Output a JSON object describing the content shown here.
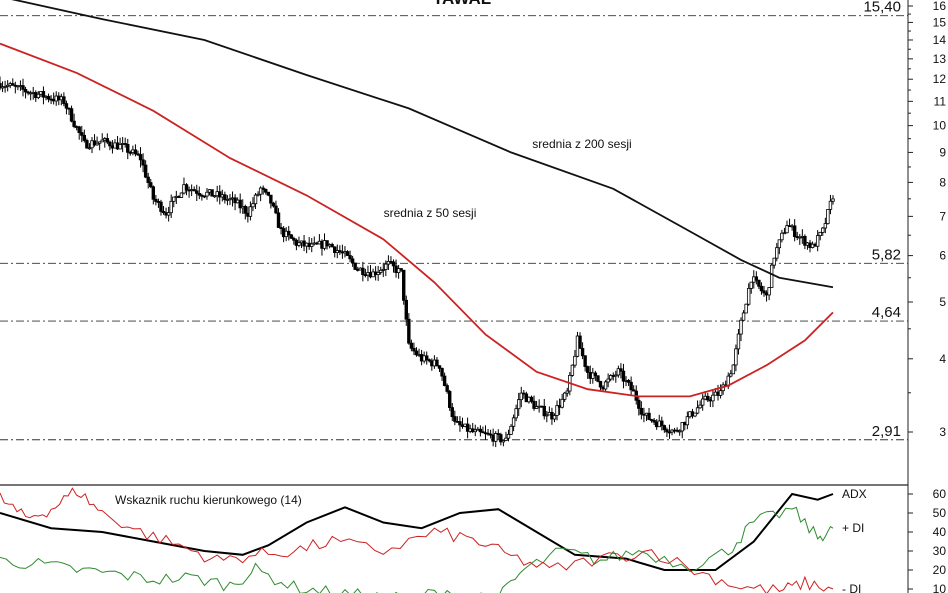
{
  "chart_data": [
    {
      "type": "candlestick",
      "title": "TAWAL",
      "y_scale": "log",
      "ylim": [
        2.6,
        16.4
      ],
      "y_ticks": [
        3,
        4,
        5,
        6,
        7,
        8,
        9,
        10,
        11,
        12,
        13,
        14,
        15,
        16
      ],
      "y_tick_labels": [
        "3",
        "4",
        "5",
        "6",
        "7",
        "8",
        "9",
        "10",
        "11",
        "12",
        "13",
        "14",
        "15",
        "16"
      ],
      "reference_levels": [
        {
          "value": 15.4,
          "label": "15,40"
        },
        {
          "value": 5.82,
          "label": "5,82"
        },
        {
          "value": 4.64,
          "label": "4,64"
        },
        {
          "value": 2.91,
          "label": "2,91"
        }
      ],
      "annotations": [
        "srednia z 200 sesji",
        "srednia z 50 sesji"
      ],
      "close_path": [
        [
          0,
          11.8
        ],
        [
          12,
          11.4
        ],
        [
          25,
          11.0
        ],
        [
          33,
          9.3
        ],
        [
          40,
          9.4
        ],
        [
          48,
          9.2
        ],
        [
          55,
          8.8
        ],
        [
          60,
          7.5
        ],
        [
          65,
          7.1
        ],
        [
          72,
          7.9
        ],
        [
          78,
          7.7
        ],
        [
          85,
          7.6
        ],
        [
          92,
          7.4
        ],
        [
          97,
          7.1
        ],
        [
          102,
          7.8
        ],
        [
          106,
          7.4
        ],
        [
          110,
          6.6
        ],
        [
          116,
          6.3
        ],
        [
          122,
          6.2
        ],
        [
          128,
          6.3
        ],
        [
          135,
          6.0
        ],
        [
          140,
          5.7
        ],
        [
          146,
          5.6
        ],
        [
          152,
          5.8
        ],
        [
          157,
          5.6
        ],
        [
          160,
          4.2
        ],
        [
          165,
          4.0
        ],
        [
          172,
          3.9
        ],
        [
          178,
          3.1
        ],
        [
          185,
          3.0
        ],
        [
          192,
          2.95
        ],
        [
          198,
          2.9
        ],
        [
          204,
          3.5
        ],
        [
          210,
          3.3
        ],
        [
          216,
          3.2
        ],
        [
          222,
          3.5
        ],
        [
          226,
          4.3
        ],
        [
          230,
          3.8
        ],
        [
          236,
          3.6
        ],
        [
          242,
          3.8
        ],
        [
          248,
          3.5
        ],
        [
          252,
          3.2
        ],
        [
          258,
          3.1
        ],
        [
          264,
          3.0
        ],
        [
          270,
          3.2
        ],
        [
          276,
          3.4
        ],
        [
          282,
          3.5
        ],
        [
          287,
          3.9
        ],
        [
          290,
          4.6
        ],
        [
          294,
          5.5
        ],
        [
          300,
          5.1
        ],
        [
          303,
          6.0
        ],
        [
          308,
          6.8
        ],
        [
          312,
          6.5
        ],
        [
          318,
          6.2
        ],
        [
          322,
          6.6
        ],
        [
          326,
          7.6
        ]
      ],
      "series": [
        {
          "name": "srednia z 200 sesji",
          "color": "#111111",
          "values": [
            [
              0,
              16.6
            ],
            [
              40,
              15.2
            ],
            [
              80,
              14.0
            ],
            [
              120,
              12.2
            ],
            [
              160,
              10.7
            ],
            [
              200,
              9.0
            ],
            [
              240,
              7.8
            ],
            [
              270,
              6.6
            ],
            [
              290,
              5.9
            ],
            [
              305,
              5.5
            ],
            [
              326,
              5.3
            ]
          ]
        },
        {
          "name": "srednia z 50 sesji",
          "color": "#cc2222",
          "values": [
            [
              0,
              13.8
            ],
            [
              30,
              12.3
            ],
            [
              60,
              10.6
            ],
            [
              90,
              8.8
            ],
            [
              120,
              7.6
            ],
            [
              150,
              6.4
            ],
            [
              170,
              5.4
            ],
            [
              190,
              4.4
            ],
            [
              210,
              3.8
            ],
            [
              230,
              3.55
            ],
            [
              250,
              3.45
            ],
            [
              270,
              3.45
            ],
            [
              285,
              3.6
            ],
            [
              300,
              3.9
            ],
            [
              315,
              4.3
            ],
            [
              326,
              4.8
            ]
          ]
        }
      ]
    },
    {
      "type": "line",
      "title": "Wskaznik ruchu kierunkowego (14)",
      "ylim": [
        5,
        63
      ],
      "y_ticks": [
        10,
        20,
        30,
        40,
        50,
        60
      ],
      "y_tick_labels": [
        "10",
        "20",
        "30",
        "40",
        "50",
        "60"
      ],
      "series": [
        {
          "name": "ADX",
          "color": "#000000",
          "values": [
            [
              0,
              50
            ],
            [
              20,
              42
            ],
            [
              40,
              40
            ],
            [
              60,
              35
            ],
            [
              80,
              30
            ],
            [
              95,
              28
            ],
            [
              105,
              33
            ],
            [
              120,
              45
            ],
            [
              135,
              53
            ],
            [
              150,
              45
            ],
            [
              165,
              42
            ],
            [
              180,
              50
            ],
            [
              195,
              52
            ],
            [
              210,
              40
            ],
            [
              225,
              28
            ],
            [
              245,
              26
            ],
            [
              260,
              20
            ],
            [
              280,
              20
            ],
            [
              295,
              35
            ],
            [
              310,
              60
            ],
            [
              320,
              57
            ],
            [
              326,
              60
            ]
          ]
        },
        {
          "name": "+ DI",
          "color": "#2e8b2e",
          "values": [
            [
              0,
              25
            ],
            [
              15,
              23
            ],
            [
              30,
              20
            ],
            [
              45,
              18
            ],
            [
              60,
              15
            ],
            [
              75,
              16
            ],
            [
              90,
              12
            ],
            [
              100,
              20
            ],
            [
              115,
              11
            ],
            [
              130,
              8
            ],
            [
              145,
              6
            ],
            [
              160,
              5
            ],
            [
              175,
              9
            ],
            [
              195,
              5
            ],
            [
              205,
              20
            ],
            [
              220,
              30
            ],
            [
              235,
              25
            ],
            [
              250,
              30
            ],
            [
              270,
              22
            ],
            [
              285,
              30
            ],
            [
              295,
              45
            ],
            [
              310,
              52
            ],
            [
              320,
              37
            ],
            [
              326,
              42
            ]
          ]
        },
        {
          "name": "- DI",
          "color": "#cc2222",
          "values": [
            [
              0,
              58
            ],
            [
              10,
              47
            ],
            [
              20,
              52
            ],
            [
              30,
              62
            ],
            [
              40,
              50
            ],
            [
              55,
              40
            ],
            [
              70,
              33
            ],
            [
              85,
              25
            ],
            [
              100,
              28
            ],
            [
              115,
              30
            ],
            [
              130,
              35
            ],
            [
              150,
              30
            ],
            [
              170,
              40
            ],
            [
              185,
              36
            ],
            [
              200,
              27
            ],
            [
              215,
              20
            ],
            [
              235,
              26
            ],
            [
              255,
              30
            ],
            [
              275,
              18
            ],
            [
              290,
              11
            ],
            [
              305,
              9
            ],
            [
              315,
              13
            ],
            [
              326,
              10
            ]
          ]
        }
      ],
      "series_labels": [
        "ADX",
        "+ DI",
        "- DI"
      ]
    }
  ]
}
